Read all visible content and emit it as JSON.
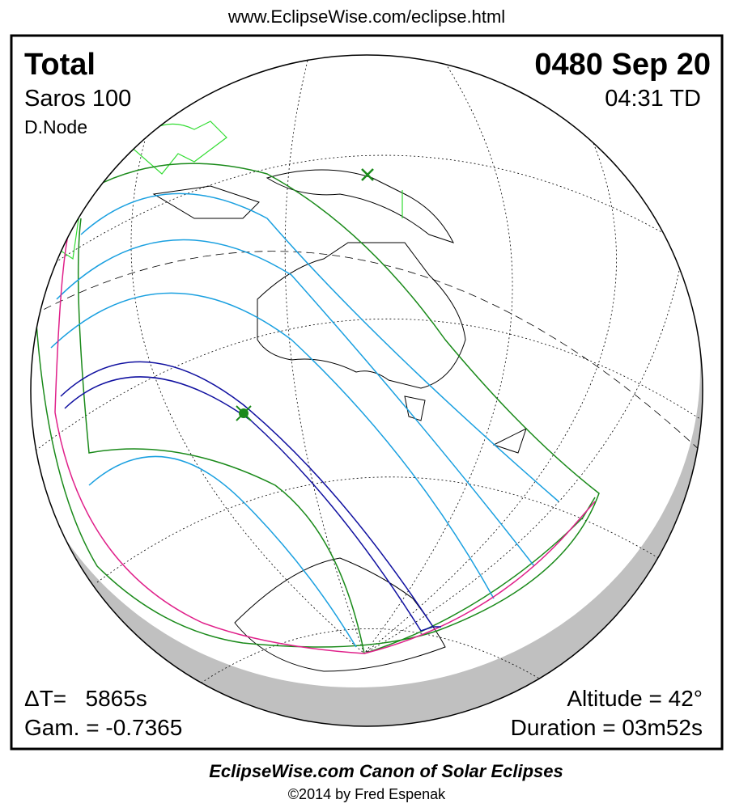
{
  "header": {
    "url": "www.EclipseWise.com/eclipse.html"
  },
  "panel": {
    "eclipse_type": "Total",
    "saros": "Saros 100",
    "node": "D.Node",
    "date": "0480 Sep 20",
    "time": "04:31 TD",
    "delta_t": "ΔT=   5865s",
    "gamma": "Gam. = -0.7365",
    "altitude": "Altitude = 42°",
    "duration": "Duration = 03m52s"
  },
  "footer": {
    "title": "EclipseWise.com Canon of Solar Eclipses",
    "copyright": "©2014 by Fred Espenak"
  }
}
